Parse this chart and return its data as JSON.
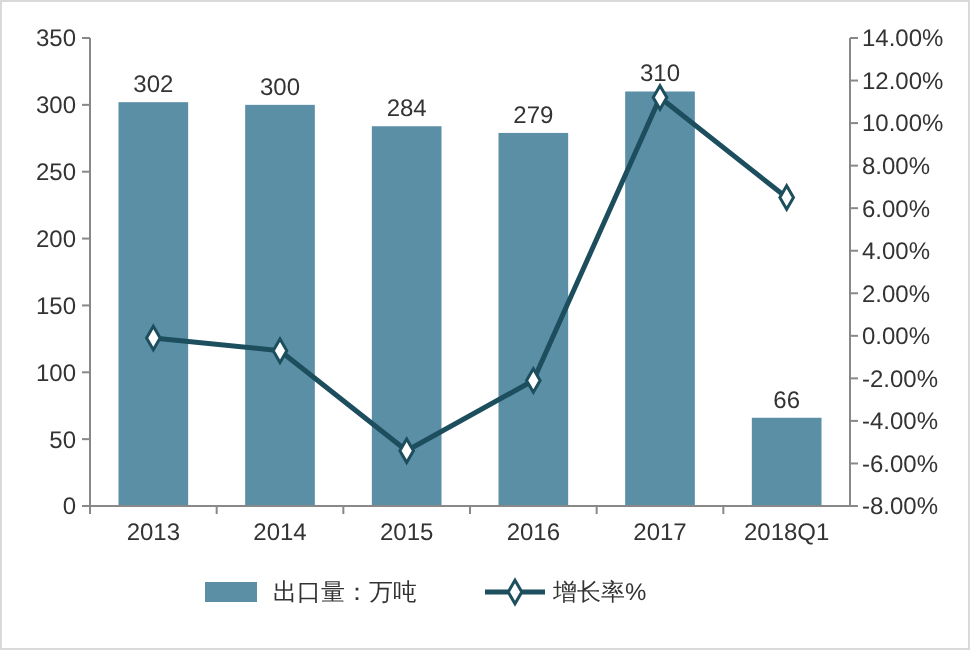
{
  "chart_data": {
    "type": "bar",
    "categories": [
      "2013",
      "2014",
      "2015",
      "2016",
      "2017",
      "2018Q1"
    ],
    "series": [
      {
        "name": "出口量：万吨",
        "color": "#5b8fa6",
        "values": [
          302,
          300,
          284,
          279,
          310,
          66
        ],
        "value_labels": [
          "302",
          "300",
          "284",
          "279",
          "310",
          "66"
        ]
      },
      {
        "name": "增长率%",
        "type": "line",
        "axis": "y2",
        "color": "#1d4e5e",
        "marker": "diamond",
        "values": [
          -0.1,
          -0.7,
          -5.4,
          -2.1,
          11.2,
          6.5
        ]
      }
    ],
    "ylim": [
      0,
      350
    ],
    "yticks": [
      0,
      50,
      100,
      150,
      200,
      250,
      300,
      350
    ],
    "y2lim": [
      -8,
      14
    ],
    "y2ticks": [
      {
        "value": -8,
        "label": "-8.00%"
      },
      {
        "value": -6,
        "label": "-6.00%"
      },
      {
        "value": -4,
        "label": "-4.00%"
      },
      {
        "value": -2,
        "label": "-2.00%"
      },
      {
        "value": 0,
        "label": "0.00%"
      },
      {
        "value": 2,
        "label": "2.00%"
      },
      {
        "value": 4,
        "label": "4.00%"
      },
      {
        "value": 6,
        "label": "6.00%"
      },
      {
        "value": 8,
        "label": "8.00%"
      },
      {
        "value": 10,
        "label": "10.00%"
      },
      {
        "value": 12,
        "label": "12.00%"
      },
      {
        "value": 14,
        "label": "14.00%"
      }
    ],
    "legend": "bottom"
  }
}
